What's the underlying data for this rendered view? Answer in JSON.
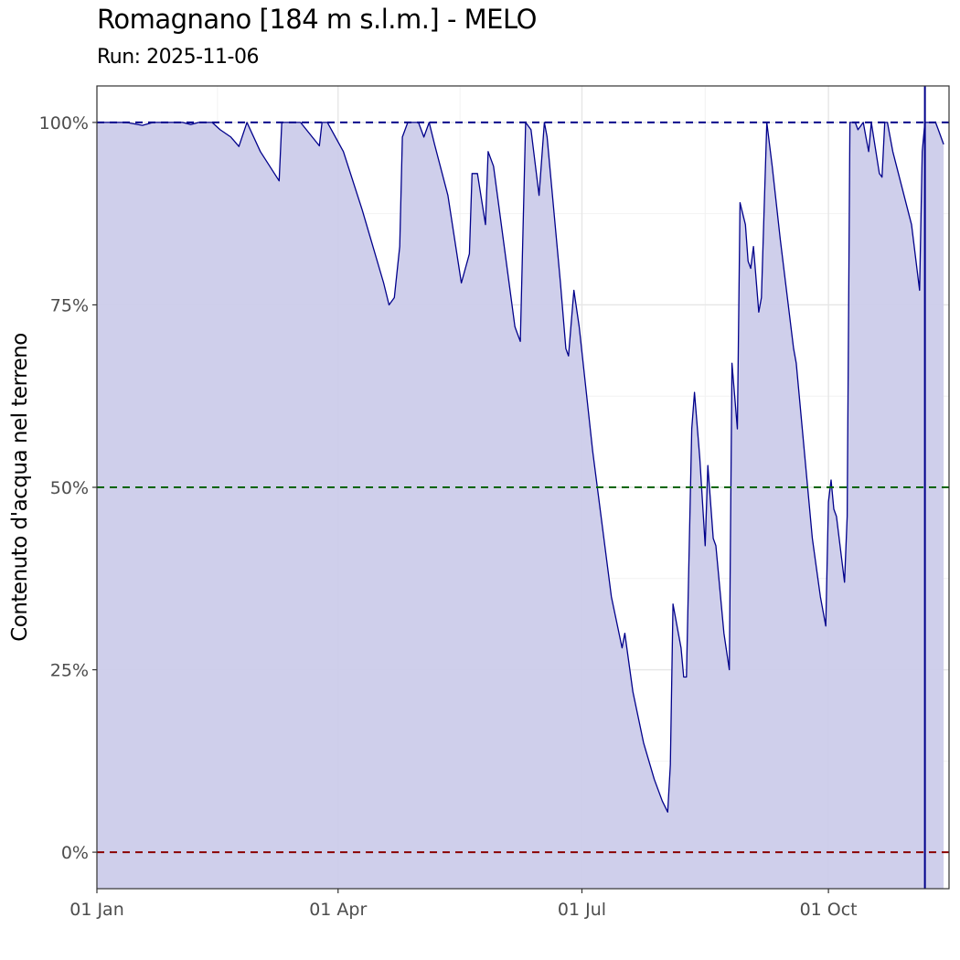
{
  "title": "Romagnano [184 m s.l.m.] - MELO",
  "subtitle": "Run: 2025-11-06",
  "chart_data": {
    "type": "area",
    "title": "Romagnano [184 m s.l.m.] - MELO",
    "subtitle": "Run: 2025-11-06",
    "xlabel": "",
    "ylabel": "Contenuto d'acqua nel terreno",
    "xlim": [
      "2025-01-01",
      "2025-11-15"
    ],
    "ylim": [
      -0.05,
      1.05
    ],
    "x_ticks": [
      {
        "date": "2025-01-01",
        "label": "01 Jan"
      },
      {
        "date": "2025-04-01",
        "label": "01 Apr"
      },
      {
        "date": "2025-07-01",
        "label": "01 Jul"
      },
      {
        "date": "2025-10-01",
        "label": "01 Oct"
      }
    ],
    "y_ticks": [
      {
        "value": 0,
        "label": "0%"
      },
      {
        "value": 0.25,
        "label": "25%"
      },
      {
        "value": 0.5,
        "label": "50%"
      },
      {
        "value": 0.75,
        "label": "75%"
      },
      {
        "value": 1,
        "label": "100%"
      }
    ],
    "grid": true,
    "reference_lines": [
      {
        "y": 1.0,
        "color": "#00008b",
        "style": "dashed"
      },
      {
        "y": 0.5,
        "color": "#006400",
        "style": "dashed"
      },
      {
        "y": 0.0,
        "color": "#8b0000",
        "style": "dashed"
      }
    ],
    "vertical_line": {
      "x": "2025-11-06",
      "color": "#00008b"
    },
    "colors": {
      "line": "#00008b",
      "fill": "#ccccea"
    },
    "series": [
      {
        "points": [
          [
            "2025-01-01",
            1.0
          ],
          [
            "2025-01-05",
            1.0
          ],
          [
            "2025-01-12",
            1.0
          ],
          [
            "2025-01-18",
            0.996
          ],
          [
            "2025-01-22",
            1.0
          ],
          [
            "2025-02-02",
            1.0
          ],
          [
            "2025-02-05",
            0.997
          ],
          [
            "2025-02-08",
            1.0
          ],
          [
            "2025-02-13",
            1.0
          ],
          [
            "2025-02-16",
            0.99
          ],
          [
            "2025-02-20",
            0.98
          ],
          [
            "2025-02-23",
            0.967
          ],
          [
            "2025-02-26",
            1.0
          ],
          [
            "2025-03-03",
            0.96
          ],
          [
            "2025-03-10",
            0.92
          ],
          [
            "2025-03-11",
            1.0
          ],
          [
            "2025-03-18",
            1.0
          ],
          [
            "2025-03-25",
            0.968
          ],
          [
            "2025-03-26",
            1.0
          ],
          [
            "2025-03-28",
            1.0
          ],
          [
            "2025-04-03",
            0.96
          ],
          [
            "2025-04-10",
            0.88
          ],
          [
            "2025-04-18",
            0.78
          ],
          [
            "2025-04-20",
            0.75
          ],
          [
            "2025-04-22",
            0.76
          ],
          [
            "2025-04-24",
            0.83
          ],
          [
            "2025-04-25",
            0.98
          ],
          [
            "2025-04-27",
            1.0
          ],
          [
            "2025-05-01",
            1.0
          ],
          [
            "2025-05-03",
            0.98
          ],
          [
            "2025-05-05",
            1.0
          ],
          [
            "2025-05-07",
            0.97
          ],
          [
            "2025-05-12",
            0.9
          ],
          [
            "2025-05-17",
            0.78
          ],
          [
            "2025-05-20",
            0.82
          ],
          [
            "2025-05-21",
            0.93
          ],
          [
            "2025-05-23",
            0.93
          ],
          [
            "2025-05-26",
            0.86
          ],
          [
            "2025-05-27",
            0.96
          ],
          [
            "2025-05-29",
            0.94
          ],
          [
            "2025-06-06",
            0.72
          ],
          [
            "2025-06-07",
            0.71
          ],
          [
            "2025-06-08",
            0.7
          ],
          [
            "2025-06-10",
            1.0
          ],
          [
            "2025-06-12",
            0.99
          ],
          [
            "2025-06-15",
            0.9
          ],
          [
            "2025-06-17",
            1.0
          ],
          [
            "2025-06-18",
            0.98
          ],
          [
            "2025-06-23",
            0.78
          ],
          [
            "2025-06-25",
            0.69
          ],
          [
            "2025-06-26",
            0.68
          ],
          [
            "2025-06-28",
            0.77
          ],
          [
            "2025-06-30",
            0.72
          ],
          [
            "2025-07-05",
            0.55
          ],
          [
            "2025-07-12",
            0.35
          ],
          [
            "2025-07-16",
            0.28
          ],
          [
            "2025-07-17",
            0.3
          ],
          [
            "2025-07-20",
            0.22
          ],
          [
            "2025-07-24",
            0.15
          ],
          [
            "2025-07-28",
            0.1
          ],
          [
            "2025-07-31",
            0.07
          ],
          [
            "2025-08-02",
            0.055
          ],
          [
            "2025-08-03",
            0.12
          ],
          [
            "2025-08-04",
            0.34
          ],
          [
            "2025-08-07",
            0.28
          ],
          [
            "2025-08-08",
            0.24
          ],
          [
            "2025-08-09",
            0.24
          ],
          [
            "2025-08-11",
            0.58
          ],
          [
            "2025-08-12",
            0.63
          ],
          [
            "2025-08-14",
            0.54
          ],
          [
            "2025-08-16",
            0.42
          ],
          [
            "2025-08-17",
            0.53
          ],
          [
            "2025-08-19",
            0.43
          ],
          [
            "2025-08-20",
            0.42
          ],
          [
            "2025-08-23",
            0.3
          ],
          [
            "2025-08-25",
            0.25
          ],
          [
            "2025-08-26",
            0.67
          ],
          [
            "2025-08-28",
            0.58
          ],
          [
            "2025-08-29",
            0.89
          ],
          [
            "2025-08-31",
            0.86
          ],
          [
            "2025-09-01",
            0.81
          ],
          [
            "2025-09-02",
            0.8
          ],
          [
            "2025-09-03",
            0.83
          ],
          [
            "2025-09-05",
            0.74
          ],
          [
            "2025-09-06",
            0.76
          ],
          [
            "2025-09-08",
            1.0
          ],
          [
            "2025-09-10",
            0.94
          ],
          [
            "2025-09-13",
            0.84
          ],
          [
            "2025-09-18",
            0.69
          ],
          [
            "2025-09-19",
            0.67
          ],
          [
            "2025-09-25",
            0.43
          ],
          [
            "2025-09-28",
            0.35
          ],
          [
            "2025-09-30",
            0.31
          ],
          [
            "2025-10-01",
            0.48
          ],
          [
            "2025-10-02",
            0.51
          ],
          [
            "2025-10-03",
            0.47
          ],
          [
            "2025-10-04",
            0.46
          ],
          [
            "2025-10-07",
            0.37
          ],
          [
            "2025-10-08",
            0.46
          ],
          [
            "2025-10-09",
            1.0
          ],
          [
            "2025-10-11",
            1.0
          ],
          [
            "2025-10-12",
            0.99
          ],
          [
            "2025-10-14",
            1.0
          ],
          [
            "2025-10-15",
            0.98
          ],
          [
            "2025-10-16",
            0.96
          ],
          [
            "2025-10-17",
            1.0
          ],
          [
            "2025-10-20",
            0.93
          ],
          [
            "2025-10-21",
            0.925
          ],
          [
            "2025-10-22",
            1.0
          ],
          [
            "2025-10-23",
            1.0
          ],
          [
            "2025-10-25",
            0.96
          ],
          [
            "2025-11-01",
            0.86
          ],
          [
            "2025-11-04",
            0.77
          ],
          [
            "2025-11-05",
            0.96
          ],
          [
            "2025-11-06",
            1.0
          ],
          [
            "2025-11-08",
            1.0
          ],
          [
            "2025-11-10",
            1.0
          ],
          [
            "2025-11-11",
            0.99
          ],
          [
            "2025-11-13",
            0.97
          ]
        ]
      }
    ]
  }
}
